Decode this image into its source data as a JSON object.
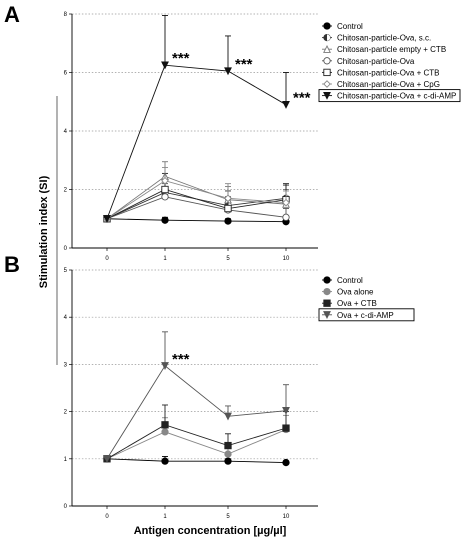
{
  "ylabel": "Stimulation index (SI)",
  "xlabel": "Antigen concentration [µg/µl]",
  "chart_data": [
    {
      "panel": "A",
      "type": "line",
      "x": [
        0,
        1,
        5,
        10
      ],
      "x_tick_labels": [
        "0",
        "1",
        "5",
        "10"
      ],
      "ylim": [
        0,
        8
      ],
      "y_ticks": [
        0,
        2,
        4,
        6,
        8
      ],
      "grid": "horizontal dotted",
      "legend_position": "top-right",
      "series": [
        {
          "name": "Control",
          "values": [
            1.0,
            0.95,
            0.92,
            0.9
          ],
          "err": [
            0.05,
            0.1,
            0.08,
            0.1
          ],
          "color": "#000000",
          "marker": "circle-filled",
          "highlight": false
        },
        {
          "name": "Chitosan-particle-Ova, s.c.",
          "values": [
            1.0,
            1.9,
            1.45,
            1.7
          ],
          "err": [
            0.05,
            0.4,
            0.5,
            0.45
          ],
          "color": "#333333",
          "marker": "circle-half",
          "highlight": false
        },
        {
          "name": "Chitosan-particle empty + CTB",
          "values": [
            1.0,
            2.45,
            1.65,
            1.5
          ],
          "err": [
            0.05,
            0.5,
            0.45,
            0.5
          ],
          "color": "#777777",
          "marker": "triangle-open",
          "highlight": false
        },
        {
          "name": "Chitosan-particle-Ova",
          "values": [
            1.0,
            1.75,
            1.3,
            1.05
          ],
          "err": [
            0.05,
            0.45,
            0.35,
            0.3
          ],
          "color": "#555555",
          "marker": "circle-open",
          "highlight": false
        },
        {
          "name": "Chitosan-particle-Ova + CTB",
          "values": [
            1.0,
            2.0,
            1.35,
            1.65
          ],
          "err": [
            0.05,
            0.55,
            0.4,
            0.55
          ],
          "color": "#222222",
          "marker": "square-open",
          "highlight": false
        },
        {
          "name": "Chitosan-particle-Ova + CpG",
          "values": [
            1.0,
            2.3,
            1.7,
            1.55
          ],
          "err": [
            0.05,
            0.45,
            0.5,
            0.4
          ],
          "color": "#888888",
          "marker": "diamond-open",
          "highlight": false
        },
        {
          "name": "Chitosan-particle-Ova + c-di-AMP",
          "values": [
            1.0,
            6.25,
            6.05,
            4.9
          ],
          "err": [
            0.05,
            1.7,
            1.2,
            1.1
          ],
          "color": "#111111",
          "marker": "triangle-down-filled",
          "highlight": true
        }
      ],
      "annotations": [
        {
          "x": 1,
          "text": "***"
        },
        {
          "x": 5,
          "text": "***"
        },
        {
          "x": 10,
          "text": "***"
        }
      ]
    },
    {
      "panel": "B",
      "type": "line",
      "x": [
        0,
        1,
        5,
        10
      ],
      "x_tick_labels": [
        "0",
        "1",
        "5",
        "10"
      ],
      "ylim": [
        0,
        5
      ],
      "y_ticks": [
        0,
        1,
        2,
        3,
        4,
        5
      ],
      "grid": "horizontal dotted",
      "legend_position": "top-right",
      "series": [
        {
          "name": "Control",
          "values": [
            1.0,
            0.95,
            0.95,
            0.92
          ],
          "err": [
            0.02,
            0.1,
            0.05,
            0.03
          ],
          "color": "#000000",
          "marker": "circle-filled",
          "highlight": false
        },
        {
          "name": "Ova alone",
          "values": [
            1.0,
            1.57,
            1.1,
            1.62
          ],
          "err": [
            0.02,
            0.3,
            0.2,
            0.3
          ],
          "color": "#888888",
          "marker": "circle-filled",
          "highlight": false
        },
        {
          "name": "Ova + CTB",
          "values": [
            1.0,
            1.72,
            1.28,
            1.65
          ],
          "err": [
            0.02,
            0.42,
            0.25,
            0.35
          ],
          "color": "#222222",
          "marker": "square-filled",
          "highlight": false
        },
        {
          "name": "Ova + c-di-AMP",
          "values": [
            1.0,
            2.97,
            1.9,
            2.02
          ],
          "err": [
            0.02,
            0.72,
            0.22,
            0.55
          ],
          "color": "#555555",
          "marker": "triangle-down-filled",
          "highlight": true
        }
      ],
      "annotations": [
        {
          "x": 1,
          "text": "***"
        }
      ]
    }
  ]
}
